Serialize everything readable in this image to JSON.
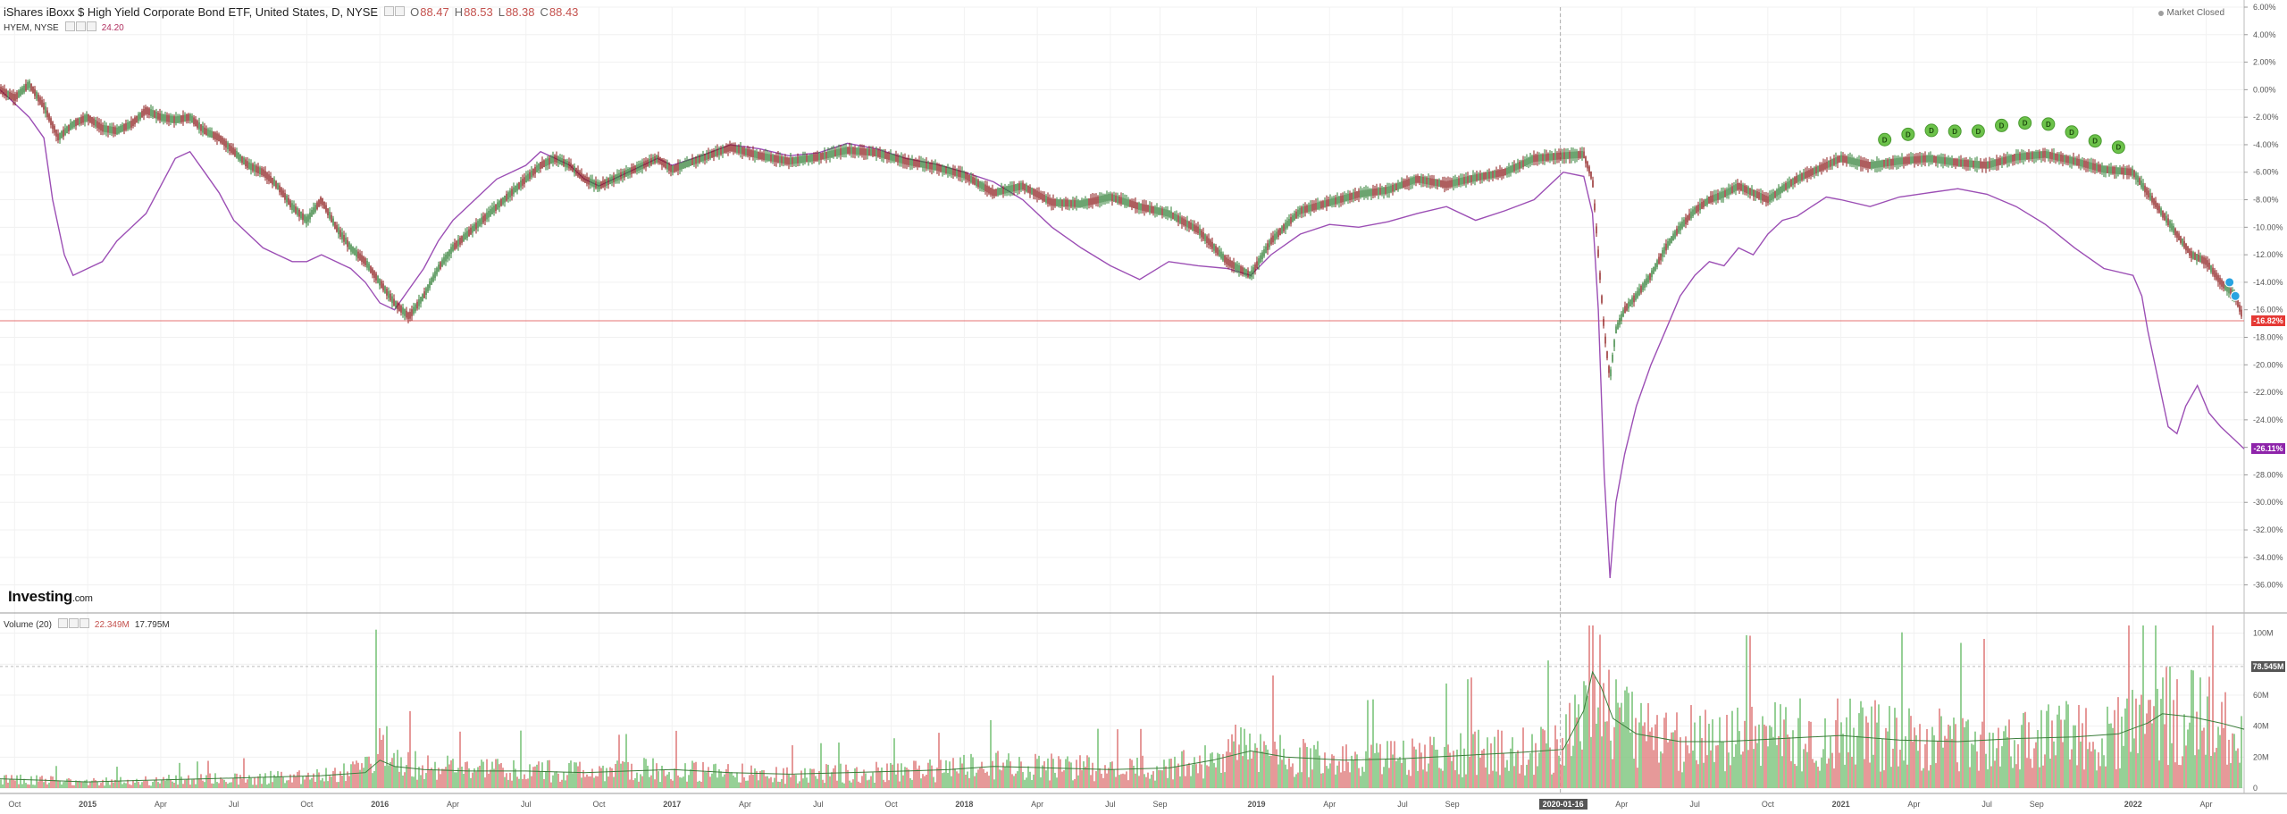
{
  "header": {
    "symbol_title": "iShares iBoxx $ High Yield Corporate Bond ETF, United States, D, NYSE",
    "open_label": "O",
    "open_value": "88.47",
    "high_label": "H",
    "high_value": "88.53",
    "low_label": "L",
    "low_value": "88.38",
    "close_label": "C",
    "close_value": "88.43",
    "compare_symbol": "HYEM, NYSE",
    "compare_value": "24.20",
    "market_status": "Market Closed"
  },
  "volume_panel": {
    "label": "Volume (20)",
    "value_a": "22.349M",
    "value_b": "17.795M",
    "current_tag": "78.545M"
  },
  "branding": {
    "logo_text": "Investing",
    "logo_domain": ".com"
  },
  "colors": {
    "up": "#2e7d32",
    "down": "#8b1a1a",
    "compare_line": "#9c4fb5",
    "ref_line": "#e57373",
    "tag_main": "#e53935",
    "tag_compare": "#8e24aa",
    "vol_up": "#7cc47c",
    "vol_down": "#e08080",
    "vol_ma": "#3a7d3a",
    "dividend_marker": "#6cc24a",
    "event_marker": "#29a3e0"
  },
  "price_tags": {
    "main": "-16.82%",
    "compare": "-26.11%"
  },
  "highlighted_date": "2020-01-16",
  "chart_data": [
    {
      "type": "line",
      "subtype": "candlestick-percent-comparison",
      "ylabel": "",
      "scale": "percent",
      "ylim": [
        -37,
        6
      ],
      "y_ticks": [
        "6.00%",
        "4.00%",
        "2.00%",
        "0.00%",
        "-2.00%",
        "-4.00%",
        "-6.00%",
        "-8.00%",
        "-10.00%",
        "-12.00%",
        "-14.00%",
        "-16.00%",
        "-18.00%",
        "-20.00%",
        "-22.00%",
        "-24.00%",
        "-26.00%",
        "-28.00%",
        "-30.00%",
        "-32.00%",
        "-34.00%",
        "-36.00%"
      ],
      "y_tick_values": [
        6,
        4,
        2,
        0,
        -2,
        -4,
        -6,
        -8,
        -10,
        -12,
        -14,
        -16,
        -18,
        -20,
        -22,
        -24,
        -26,
        -28,
        -30,
        -32,
        -34,
        -36
      ],
      "x_ticks": [
        "Oct",
        "2015",
        "Apr",
        "Jul",
        "Oct",
        "2016",
        "Apr",
        "Jul",
        "Oct",
        "2017",
        "Apr",
        "Jul",
        "Oct",
        "2018",
        "Apr",
        "Jul",
        "Sep",
        "2019",
        "Apr",
        "Jul",
        "Sep",
        "2020-01-16",
        "Apr",
        "Jul",
        "Oct",
        "2021",
        "Apr",
        "Jul",
        "Sep",
        "2022",
        "Apr"
      ],
      "x_tick_values": [
        2014.75,
        2015.0,
        2015.25,
        2015.5,
        2015.75,
        2016.0,
        2016.25,
        2016.5,
        2016.75,
        2017.0,
        2017.25,
        2017.5,
        2017.75,
        2018.0,
        2018.25,
        2018.5,
        2018.67,
        2019.0,
        2019.25,
        2019.5,
        2019.67,
        2020.04,
        2020.25,
        2020.5,
        2020.75,
        2021.0,
        2021.25,
        2021.5,
        2021.67,
        2022.0,
        2022.25
      ],
      "xlim": [
        2014.7,
        2022.38
      ],
      "series": [
        {
          "name": "iShares iBoxx $ High Yield Corporate Bond ETF",
          "x": [
            2014.7,
            2014.75,
            2014.8,
            2014.85,
            2014.9,
            2014.95,
            2015.0,
            2015.05,
            2015.1,
            2015.15,
            2015.2,
            2015.25,
            2015.3,
            2015.35,
            2015.4,
            2015.45,
            2015.5,
            2015.55,
            2015.6,
            2015.65,
            2015.7,
            2015.75,
            2015.8,
            2015.85,
            2015.9,
            2015.95,
            2016.0,
            2016.05,
            2016.1,
            2016.15,
            2016.2,
            2016.25,
            2016.3,
            2016.35,
            2016.4,
            2016.45,
            2016.5,
            2016.55,
            2016.6,
            2016.65,
            2016.7,
            2016.75,
            2016.8,
            2016.85,
            2016.9,
            2016.95,
            2017.0,
            2017.1,
            2017.2,
            2017.3,
            2017.4,
            2017.5,
            2017.6,
            2017.7,
            2017.8,
            2017.9,
            2018.0,
            2018.1,
            2018.2,
            2018.3,
            2018.4,
            2018.5,
            2018.6,
            2018.7,
            2018.8,
            2018.9,
            2018.98,
            2019.05,
            2019.15,
            2019.25,
            2019.35,
            2019.45,
            2019.55,
            2019.65,
            2019.75,
            2019.85,
            2019.95,
            2020.05,
            2020.12,
            2020.15,
            2020.17,
            2020.19,
            2020.21,
            2020.23,
            2020.26,
            2020.3,
            2020.35,
            2020.4,
            2020.45,
            2020.5,
            2020.55,
            2020.6,
            2020.65,
            2020.7,
            2020.75,
            2020.8,
            2020.85,
            2020.9,
            2020.95,
            2021.0,
            2021.1,
            2021.2,
            2021.3,
            2021.4,
            2021.5,
            2021.6,
            2021.7,
            2021.8,
            2021.9,
            2022.0,
            2022.05,
            2022.1,
            2022.15,
            2022.2,
            2022.25,
            2022.3,
            2022.35,
            2022.38
          ],
          "values": [
            0.0,
            -0.6,
            0.4,
            -1.2,
            -3.5,
            -2.5,
            -2.0,
            -2.8,
            -3.0,
            -2.5,
            -1.5,
            -2.0,
            -2.2,
            -2.0,
            -3.0,
            -3.5,
            -4.5,
            -5.5,
            -6.0,
            -7.0,
            -8.5,
            -9.5,
            -8.0,
            -10.0,
            -11.5,
            -12.5,
            -14.0,
            -15.5,
            -16.5,
            -15.0,
            -13.0,
            -11.5,
            -10.5,
            -9.5,
            -8.5,
            -7.5,
            -6.5,
            -5.5,
            -5.0,
            -5.5,
            -6.5,
            -7.0,
            -6.5,
            -6.0,
            -5.5,
            -5.0,
            -5.8,
            -5.0,
            -4.2,
            -4.8,
            -5.2,
            -4.9,
            -4.4,
            -4.6,
            -5.2,
            -5.6,
            -6.2,
            -7.5,
            -7.0,
            -8.2,
            -8.3,
            -7.8,
            -8.5,
            -9.0,
            -10.2,
            -12.5,
            -13.5,
            -11.0,
            -8.8,
            -8.2,
            -7.6,
            -7.3,
            -6.5,
            -6.9,
            -6.4,
            -6.0,
            -5.0,
            -4.8,
            -4.7,
            -6.5,
            -12.0,
            -17.5,
            -21.0,
            -17.5,
            -16.0,
            -15.0,
            -13.5,
            -11.5,
            -10.0,
            -8.8,
            -8.0,
            -7.6,
            -7.0,
            -7.5,
            -8.0,
            -7.2,
            -6.5,
            -6.0,
            -5.5,
            -5.0,
            -5.5,
            -5.2,
            -5.0,
            -5.3,
            -5.5,
            -4.9,
            -4.7,
            -5.2,
            -5.8,
            -6.0,
            -7.5,
            -9.0,
            -10.5,
            -12.0,
            -12.5,
            -14.0,
            -15.0,
            -16.8
          ]
        },
        {
          "name": "HYEM, NYSE",
          "x": [
            2014.7,
            2014.75,
            2014.8,
            2014.85,
            2014.88,
            2014.92,
            2014.95,
            2015.0,
            2015.05,
            2015.1,
            2015.15,
            2015.2,
            2015.25,
            2015.3,
            2015.35,
            2015.4,
            2015.45,
            2015.5,
            2015.55,
            2015.6,
            2015.65,
            2015.7,
            2015.75,
            2015.8,
            2015.85,
            2015.9,
            2015.95,
            2016.0,
            2016.05,
            2016.1,
            2016.15,
            2016.2,
            2016.25,
            2016.3,
            2016.35,
            2016.4,
            2016.45,
            2016.5,
            2016.55,
            2016.6,
            2016.65,
            2016.7,
            2016.75,
            2016.8,
            2016.85,
            2016.9,
            2016.95,
            2017.0,
            2017.1,
            2017.2,
            2017.3,
            2017.4,
            2017.5,
            2017.6,
            2017.7,
            2017.8,
            2017.9,
            2018.0,
            2018.1,
            2018.2,
            2018.3,
            2018.4,
            2018.5,
            2018.6,
            2018.7,
            2018.8,
            2018.9,
            2018.98,
            2019.05,
            2019.15,
            2019.25,
            2019.35,
            2019.45,
            2019.55,
            2019.65,
            2019.75,
            2019.85,
            2019.95,
            2020.05,
            2020.12,
            2020.15,
            2020.17,
            2020.19,
            2020.21,
            2020.23,
            2020.26,
            2020.3,
            2020.35,
            2020.4,
            2020.45,
            2020.5,
            2020.55,
            2020.6,
            2020.65,
            2020.7,
            2020.75,
            2020.8,
            2020.85,
            2020.9,
            2020.95,
            2021.0,
            2021.1,
            2021.2,
            2021.3,
            2021.4,
            2021.5,
            2021.6,
            2021.7,
            2021.8,
            2021.9,
            2022.0,
            2022.03,
            2022.05,
            2022.08,
            2022.12,
            2022.15,
            2022.18,
            2022.22,
            2022.26,
            2022.3,
            2022.35,
            2022.38
          ],
          "values": [
            0.0,
            -1.0,
            -2.0,
            -3.5,
            -8.0,
            -12.0,
            -13.5,
            -13.0,
            -12.5,
            -11.0,
            -10.0,
            -9.0,
            -7.0,
            -5.0,
            -4.5,
            -6.0,
            -7.5,
            -9.5,
            -10.5,
            -11.5,
            -12.0,
            -12.5,
            -12.5,
            -12.0,
            -12.5,
            -13.0,
            -14.0,
            -15.5,
            -16.0,
            -14.5,
            -13.0,
            -11.0,
            -9.5,
            -8.5,
            -7.5,
            -6.5,
            -6.0,
            -5.5,
            -4.5,
            -5.0,
            -5.5,
            -6.5,
            -7.0,
            -6.5,
            -6.0,
            -5.5,
            -5.0,
            -5.5,
            -4.8,
            -4.0,
            -4.3,
            -4.8,
            -4.6,
            -3.9,
            -4.3,
            -5.0,
            -5.4,
            -6.0,
            -6.7,
            -8.0,
            -10.0,
            -11.5,
            -12.8,
            -13.8,
            -12.5,
            -12.8,
            -13.0,
            -13.5,
            -12.0,
            -10.5,
            -9.8,
            -10.0,
            -9.6,
            -9.0,
            -8.5,
            -9.5,
            -8.8,
            -8.0,
            -6.0,
            -6.3,
            -9.0,
            -16.0,
            -28.0,
            -35.5,
            -30.0,
            -26.5,
            -23.0,
            -20.0,
            -17.5,
            -15.0,
            -13.5,
            -12.5,
            -12.8,
            -11.5,
            -12.0,
            -10.5,
            -9.5,
            -9.2,
            -8.5,
            -7.8,
            -8.0,
            -8.5,
            -7.8,
            -7.5,
            -7.2,
            -7.6,
            -8.5,
            -9.8,
            -11.5,
            -13.0,
            -13.5,
            -15.0,
            -17.5,
            -20.5,
            -24.5,
            -25.0,
            -23.0,
            -21.5,
            -23.5,
            -24.5,
            -25.5,
            -26.1
          ]
        }
      ]
    },
    {
      "type": "bar",
      "title": "Volume (20)",
      "ylim": [
        0,
        105
      ],
      "y_ticks": [
        "100M",
        "80M",
        "60M",
        "40M",
        "20M",
        "0"
      ],
      "y_tick_values": [
        100,
        80,
        60,
        40,
        20,
        0
      ],
      "unit": "M",
      "series": [
        {
          "name": "Volume",
          "x": [
            2014.7,
            2014.85,
            2015.0,
            2015.2,
            2015.4,
            2015.6,
            2015.8,
            2015.95,
            2016.0,
            2016.05,
            2016.15,
            2016.3,
            2016.5,
            2016.7,
            2016.85,
            2017.0,
            2017.2,
            2017.4,
            2017.6,
            2017.8,
            2017.95,
            2018.1,
            2018.3,
            2018.5,
            2018.7,
            2018.85,
            2018.98,
            2019.1,
            2019.3,
            2019.5,
            2019.7,
            2019.9,
            2020.05,
            2020.12,
            2020.15,
            2020.18,
            2020.22,
            2020.3,
            2020.45,
            2020.6,
            2020.8,
            2021.0,
            2021.2,
            2021.4,
            2021.6,
            2021.8,
            2021.95,
            2022.05,
            2022.1,
            2022.2,
            2022.3,
            2022.38
          ],
          "values": [
            8,
            6,
            5,
            6,
            7,
            8,
            10,
            16,
            50,
            22,
            18,
            14,
            15,
            13,
            14,
            15,
            12,
            11,
            12,
            13,
            15,
            18,
            17,
            15,
            16,
            24,
            36,
            25,
            22,
            24,
            28,
            30,
            35,
            70,
            102,
            80,
            55,
            45,
            40,
            38,
            42,
            45,
            40,
            38,
            40,
            42,
            45,
            55,
            60,
            58,
            50,
            40
          ]
        },
        {
          "name": "MA",
          "x": [
            2014.7,
            2014.85,
            2015.0,
            2015.2,
            2015.4,
            2015.6,
            2015.8,
            2015.95,
            2016.0,
            2016.05,
            2016.15,
            2016.3,
            2016.5,
            2016.7,
            2016.85,
            2017.0,
            2017.2,
            2017.4,
            2017.6,
            2017.8,
            2017.95,
            2018.1,
            2018.3,
            2018.5,
            2018.7,
            2018.85,
            2018.98,
            2019.1,
            2019.3,
            2019.5,
            2019.7,
            2019.9,
            2020.05,
            2020.12,
            2020.15,
            2020.18,
            2020.22,
            2020.3,
            2020.45,
            2020.6,
            2020.8,
            2021.0,
            2021.2,
            2021.4,
            2021.6,
            2021.8,
            2021.95,
            2022.05,
            2022.1,
            2022.2,
            2022.3,
            2022.38
          ],
          "values": [
            6,
            5,
            4,
            5,
            6,
            7,
            8,
            10,
            18,
            14,
            12,
            11,
            11,
            10,
            11,
            12,
            10,
            9,
            10,
            11,
            12,
            14,
            13,
            12,
            13,
            18,
            24,
            20,
            18,
            19,
            21,
            23,
            25,
            50,
            75,
            65,
            45,
            35,
            30,
            30,
            32,
            34,
            31,
            30,
            32,
            33,
            35,
            42,
            48,
            46,
            42,
            38
          ]
        }
      ]
    }
  ]
}
